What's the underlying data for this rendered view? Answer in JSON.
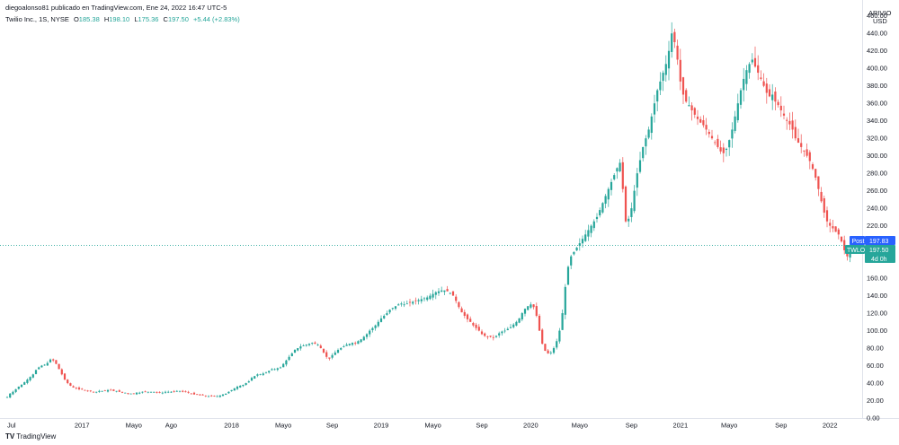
{
  "header": {
    "published_by": "diegoalonso81 publicado en TradingView.com, Ene 24, 2022 16:47 UTC-5",
    "symbol_desc": "Twilio Inc., 1S, NYSE",
    "o_label": "O",
    "o_value": "185.38",
    "h_label": "H",
    "h_value": "198.10",
    "l_label": "L",
    "l_value": "175.36",
    "c_label": "C",
    "c_value": "197.50",
    "change": "+5.44 (+2.83%)"
  },
  "footer": {
    "brand": "TradingView",
    "logo": "TV"
  },
  "colors": {
    "up": "#26a69a",
    "down": "#ef5350",
    "price_line": "#26a69a",
    "post_label": "#2962ff"
  },
  "chart_data": {
    "type": "candlestick",
    "currency_label": "USD",
    "axis_top_label": "ARIVIO",
    "ylim": [
      0,
      470
    ],
    "y_ticks": [
      "0.00",
      "20.00",
      "40.00",
      "60.00",
      "80.00",
      "100.00",
      "120.00",
      "140.00",
      "160.00",
      "180.00",
      "200.00",
      "220.00",
      "240.00",
      "260.00",
      "280.00",
      "300.00",
      "320.00",
      "340.00",
      "360.00",
      "380.00",
      "400.00",
      "420.00",
      "440.00",
      "460.00"
    ],
    "x_ticks": [
      {
        "label": "Jul",
        "week": 0
      },
      {
        "label": "2017",
        "week": 26
      },
      {
        "label": "Mayo",
        "week": 44
      },
      {
        "label": "Ago",
        "week": 57
      },
      {
        "label": "2018",
        "week": 78
      },
      {
        "label": "Mayo",
        "week": 96
      },
      {
        "label": "Sep",
        "week": 113
      },
      {
        "label": "2019",
        "week": 130
      },
      {
        "label": "Mayo",
        "week": 148
      },
      {
        "label": "Sep",
        "week": 165
      },
      {
        "label": "2020",
        "week": 182
      },
      {
        "label": "Mayo",
        "week": 199
      },
      {
        "label": "Sep",
        "week": 217
      },
      {
        "label": "2021",
        "week": 234
      },
      {
        "label": "Mayo",
        "week": 251
      },
      {
        "label": "Sep",
        "week": 269
      },
      {
        "label": "2022",
        "week": 286
      }
    ],
    "closes": [
      24,
      28,
      30,
      33,
      36,
      38,
      41,
      44,
      47,
      50,
      55,
      58,
      60,
      61,
      63,
      67,
      66,
      62,
      56,
      50,
      44,
      40,
      37,
      35,
      34,
      33,
      33,
      32,
      31,
      31,
      30,
      30,
      31,
      31,
      31,
      32,
      32,
      31,
      31,
      30,
      29,
      29,
      28,
      28,
      28,
      29,
      29,
      30,
      30,
      30,
      30,
      30,
      29,
      29,
      29,
      30,
      30,
      30,
      30,
      31,
      31,
      30,
      30,
      29,
      28,
      27,
      27,
      26,
      26,
      25,
      25,
      25,
      25,
      25,
      26,
      27,
      28,
      30,
      32,
      34,
      36,
      37,
      38,
      40,
      42,
      46,
      48,
      50,
      50,
      51,
      52,
      54,
      56,
      56,
      57,
      58,
      62,
      66,
      70,
      74,
      78,
      80,
      82,
      83,
      84,
      85,
      86,
      85,
      84,
      80,
      75,
      70,
      68,
      72,
      75,
      78,
      80,
      82,
      84,
      85,
      86,
      86,
      88,
      90,
      93,
      96,
      100,
      103,
      106,
      110,
      114,
      117,
      120,
      124,
      126,
      128,
      130,
      131,
      130,
      131,
      132,
      133,
      134,
      135,
      136,
      137,
      138,
      140,
      142,
      144,
      145,
      146,
      146,
      145,
      143,
      140,
      134,
      127,
      121,
      117,
      113,
      110,
      106,
      103,
      100,
      96,
      94,
      93,
      93,
      92,
      94,
      97,
      99,
      100,
      102,
      104,
      107,
      110,
      114,
      120,
      125,
      128,
      130,
      127,
      117,
      100,
      85,
      77,
      74,
      75,
      80,
      88,
      100,
      120,
      150,
      173,
      185,
      190,
      195,
      200,
      205,
      210,
      215,
      220,
      225,
      230,
      238,
      246,
      254,
      262,
      270,
      278,
      286,
      292,
      262,
      225,
      228,
      240,
      260,
      280,
      295,
      310,
      320,
      330,
      345,
      360,
      375,
      385,
      395,
      405,
      420,
      440,
      430,
      410,
      385,
      370,
      362,
      358,
      352,
      347,
      342,
      338,
      335,
      330,
      325,
      320,
      315,
      310,
      305,
      303,
      308,
      318,
      330,
      345,
      360,
      375,
      388,
      398,
      405,
      410,
      402,
      395,
      388,
      380,
      372,
      368,
      370,
      362,
      358,
      352,
      346,
      340,
      336,
      330,
      320,
      315,
      310,
      305,
      300,
      294,
      285,
      275,
      262,
      248,
      235,
      225,
      220,
      217,
      213,
      210,
      202,
      192,
      185,
      197.5
    ]
  },
  "price_labels": {
    "post_tag": "Post",
    "post_value": "197.83",
    "symbol_tag": "TWLO",
    "symbol_value": "197.50",
    "countdown": "4d 0h"
  }
}
